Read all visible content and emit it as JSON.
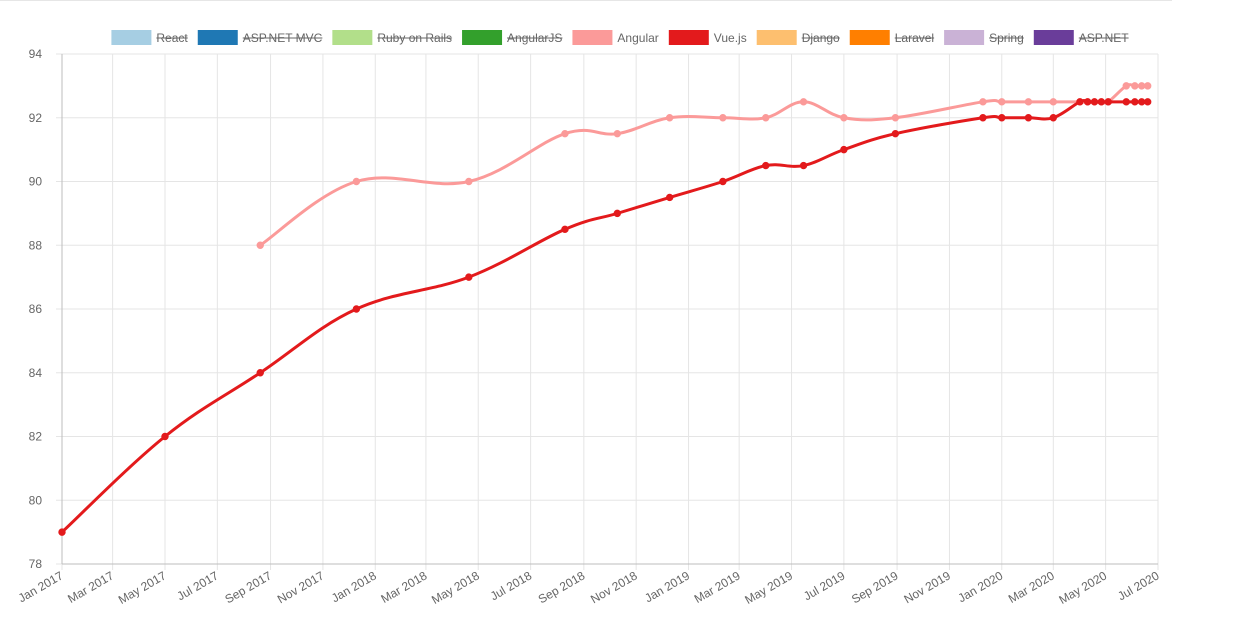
{
  "chart_data": {
    "type": "line",
    "title": "",
    "xlabel": "",
    "ylabel": "",
    "x_domain": [
      "2017-01-01",
      "2020-07-01"
    ],
    "ylim": [
      78,
      94
    ],
    "yticks": [
      78,
      80,
      82,
      84,
      86,
      88,
      90,
      92,
      94
    ],
    "xtick_labels": [
      "Jan 2017",
      "Mar 2017",
      "May 2017",
      "Jul 2017",
      "Sep 2017",
      "Nov 2017",
      "Jan 2018",
      "Mar 2018",
      "May 2018",
      "Jul 2018",
      "Sep 2018",
      "Nov 2018",
      "Jan 2019",
      "Mar 2019",
      "May 2019",
      "Jul 2019",
      "Sep 2019",
      "Nov 2019",
      "Jan 2020",
      "Mar 2020",
      "May 2020",
      "Jul 2020"
    ],
    "grid": true,
    "legend_position": "top",
    "legend": [
      {
        "name": "React",
        "color": "#a6cee3",
        "hidden": true
      },
      {
        "name": "ASP.NET MVC",
        "color": "#1f78b4",
        "hidden": true
      },
      {
        "name": "Ruby on Rails",
        "color": "#b2df8a",
        "hidden": true
      },
      {
        "name": "AngularJS",
        "color": "#33a02c",
        "hidden": true
      },
      {
        "name": "Angular",
        "color": "#fb9a99",
        "hidden": false
      },
      {
        "name": "Vue.js",
        "color": "#e31a1c",
        "hidden": false
      },
      {
        "name": "Django",
        "color": "#fdbf6f",
        "hidden": true
      },
      {
        "name": "Laravel",
        "color": "#ff7f00",
        "hidden": true
      },
      {
        "name": "Spring",
        "color": "#cab2d6",
        "hidden": true
      },
      {
        "name": "ASP.NET",
        "color": "#6a3d9a",
        "hidden": true
      }
    ],
    "series": [
      {
        "name": "Angular",
        "color": "#fb9a99",
        "points": [
          [
            "2017-08-20",
            88
          ],
          [
            "2017-12-10",
            90
          ],
          [
            "2018-04-20",
            90
          ],
          [
            "2018-08-10",
            91.5
          ],
          [
            "2018-10-10",
            91.5
          ],
          [
            "2018-12-10",
            92
          ],
          [
            "2019-02-10",
            92
          ],
          [
            "2019-04-01",
            92
          ],
          [
            "2019-05-15",
            92.5
          ],
          [
            "2019-07-01",
            92
          ],
          [
            "2019-08-30",
            92
          ],
          [
            "2019-12-10",
            92.5
          ],
          [
            "2020-01-01",
            92.5
          ],
          [
            "2020-02-01",
            92.5
          ],
          [
            "2020-03-01",
            92.5
          ],
          [
            "2020-04-01",
            92.5
          ],
          [
            "2020-04-10",
            92.5
          ],
          [
            "2020-04-18",
            92.5
          ],
          [
            "2020-04-26",
            92.5
          ],
          [
            "2020-05-04",
            92.5
          ],
          [
            "2020-05-25",
            93
          ],
          [
            "2020-06-04",
            93
          ],
          [
            "2020-06-12",
            93
          ],
          [
            "2020-06-19",
            93
          ]
        ]
      },
      {
        "name": "Vue.js",
        "color": "#e31a1c",
        "points": [
          [
            "2017-01-01",
            79
          ],
          [
            "2017-05-01",
            82
          ],
          [
            "2017-08-20",
            84
          ],
          [
            "2017-12-10",
            86
          ],
          [
            "2018-04-20",
            87
          ],
          [
            "2018-08-10",
            88.5
          ],
          [
            "2018-10-10",
            89
          ],
          [
            "2018-12-10",
            89.5
          ],
          [
            "2019-02-10",
            90
          ],
          [
            "2019-04-01",
            90.5
          ],
          [
            "2019-05-15",
            90.5
          ],
          [
            "2019-07-01",
            91
          ],
          [
            "2019-08-30",
            91.5
          ],
          [
            "2019-12-10",
            92
          ],
          [
            "2020-01-01",
            92
          ],
          [
            "2020-02-01",
            92
          ],
          [
            "2020-03-01",
            92
          ],
          [
            "2020-04-01",
            92.5
          ],
          [
            "2020-04-10",
            92.5
          ],
          [
            "2020-04-18",
            92.5
          ],
          [
            "2020-04-26",
            92.5
          ],
          [
            "2020-05-04",
            92.5
          ],
          [
            "2020-05-25",
            92.5
          ],
          [
            "2020-06-04",
            92.5
          ],
          [
            "2020-06-12",
            92.5
          ],
          [
            "2020-06-19",
            92.5
          ]
        ]
      }
    ]
  }
}
